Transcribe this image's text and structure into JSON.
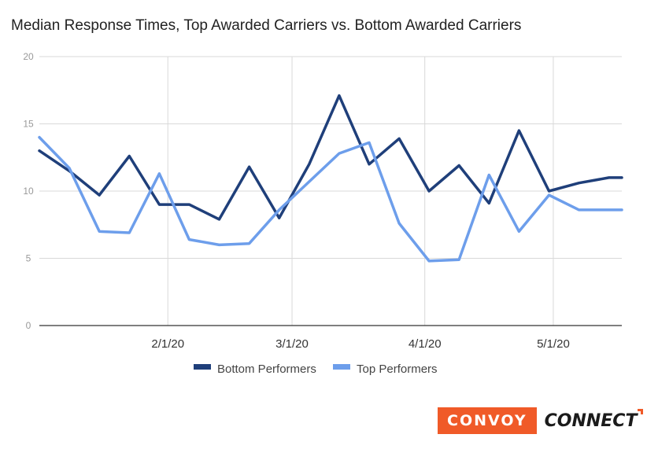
{
  "chart_data": {
    "type": "line",
    "title": "Median Response Times, Top Awarded Carriers vs. Bottom Awarded Carriers",
    "xlabel": "",
    "ylabel": "",
    "ylim": [
      0,
      20
    ],
    "yticks": [
      0,
      5,
      10,
      15,
      20
    ],
    "xlim": [
      "2020-01-02",
      "2020-05-17"
    ],
    "xticks": [
      {
        "date": "2020-02-01",
        "label": "2/1/20"
      },
      {
        "date": "2020-03-01",
        "label": "3/1/20"
      },
      {
        "date": "2020-04-01",
        "label": "4/1/20"
      },
      {
        "date": "2020-05-01",
        "label": "5/1/20"
      }
    ],
    "x": [
      "2020-01-02",
      "2020-01-09",
      "2020-01-16",
      "2020-01-23",
      "2020-01-30",
      "2020-02-06",
      "2020-02-13",
      "2020-02-20",
      "2020-02-27",
      "2020-03-05",
      "2020-03-12",
      "2020-03-19",
      "2020-03-26",
      "2020-04-02",
      "2020-04-09",
      "2020-04-16",
      "2020-04-23",
      "2020-04-30",
      "2020-05-07",
      "2020-05-14",
      "2020-05-17"
    ],
    "grid": true,
    "legend_position": "bottom",
    "series": [
      {
        "name": "Bottom Performers",
        "color": "#1f3f7a",
        "values": [
          13,
          11.5,
          9.7,
          12.6,
          9,
          9,
          7.9,
          11.8,
          8,
          12,
          17.1,
          12,
          13.9,
          10,
          11.9,
          9.1,
          14.5,
          10,
          10.6,
          11,
          11
        ]
      },
      {
        "name": "Top Performers",
        "color": "#6d9eeb",
        "values": [
          14,
          11.7,
          7,
          6.9,
          11.3,
          6.4,
          6,
          6.1,
          8.6,
          10.7,
          12.8,
          13.6,
          7.6,
          4.8,
          4.9,
          11.2,
          7,
          9.7,
          8.6,
          8.6,
          8.6
        ]
      }
    ]
  },
  "branding": {
    "convoy": "CONVOY",
    "connect": "CONNECT"
  }
}
